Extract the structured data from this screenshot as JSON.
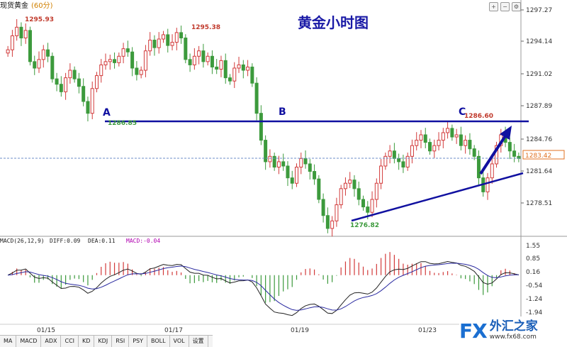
{
  "symbol_label": "现货黄金",
  "timeframe_label": "(60分)",
  "title": "黄金小时图",
  "price_axis": [
    "1297.27",
    "1294.14",
    "1291.02",
    "1287.89",
    "1284.76",
    "1281.64",
    "1278.51"
  ],
  "current_price": "1283.42",
  "annotations": {
    "high1": "1295.93",
    "high2": "1295.38",
    "level_a": "1286.85",
    "level_c": "1286.60",
    "low": "1276.82",
    "point_a": "A",
    "point_b": "B",
    "point_c": "C"
  },
  "macd_legend": {
    "params": "MACD(26,12,9)",
    "diff": "DIFF:0.09",
    "dea": "DEA:0.11",
    "macd": "MACD:-0.04"
  },
  "macd_axis": [
    "1.55",
    "0.85",
    "0.16",
    "-0.54",
    "-1.24",
    "-1.94"
  ],
  "dates": [
    "01/15",
    "01/17",
    "01/19",
    "01/23"
  ],
  "tabs": [
    "MA",
    "MACD",
    "ADX",
    "CCI",
    "KD",
    "KDJ",
    "RSI",
    "PSY",
    "BOLL",
    "VOL",
    "设置"
  ],
  "logo": {
    "mark": "FX",
    "name": "外汇之家",
    "url": "www.fx68.com"
  },
  "colors": {
    "bull": "#d23a3a",
    "bear": "#3c9a3c",
    "line": "#1010a0",
    "label_red": "#c0392b",
    "label_green": "#3c9a3c",
    "macd_label": "#b000b0"
  },
  "chart_data": {
    "type": "candlestick",
    "title": "黄金小时图",
    "series_close": [
      1293.5,
      1294.8,
      1295.6,
      1294.6,
      1295.3,
      1292.4,
      1291.8,
      1292.6,
      1293.5,
      1292.9,
      1290.8,
      1290.3,
      1289.6,
      1290.9,
      1291.6,
      1290.8,
      1290.1,
      1288.7,
      1287.6,
      1289.9,
      1291.1,
      1292.1,
      1292.4,
      1292.6,
      1292.3,
      1292.9,
      1293.6,
      1293.3,
      1291.8,
      1291.2,
      1291.6,
      1293.4,
      1294.4,
      1293.7,
      1294.5,
      1294.9,
      1293.9,
      1294.2,
      1295.1,
      1294.6,
      1292.6,
      1292.1,
      1292.9,
      1293.4,
      1292.4,
      1292.9,
      1291.9,
      1291.7,
      1292.5,
      1290.9,
      1290.6,
      1291.8,
      1292.1,
      1291.6,
      1291.9,
      1290.4,
      1287.6,
      1285.1,
      1283.1,
      1283.6,
      1282.6,
      1283.1,
      1282.7,
      1281.6,
      1281.1,
      1282.6,
      1283.4,
      1282.9,
      1282.2,
      1281.5,
      1279.6,
      1278.1,
      1276.9,
      1277.6,
      1279.1,
      1280.6,
      1281.1,
      1281.4,
      1280.6,
      1279.6,
      1278.9,
      1278.4,
      1279.6,
      1281.1,
      1282.7,
      1283.6,
      1284.1,
      1283.4,
      1283.1,
      1282.6,
      1283.6,
      1284.6,
      1285.1,
      1285.6,
      1284.9,
      1284.1,
      1284.6,
      1285.1,
      1285.8,
      1286.2,
      1285.4,
      1285.6,
      1284.6,
      1285.1,
      1284.3,
      1283.6,
      1281.6,
      1280.3,
      1281.6,
      1282.9,
      1284.6,
      1285.6,
      1284.9,
      1284.1,
      1283.6,
      1283.4
    ],
    "price_range": [
      1276.5,
      1297.6
    ],
    "lines": [
      {
        "name": "A-C resistance",
        "y": 1286.85
      },
      {
        "name": "support trendline",
        "from": [
          1277.6,
          "start"
        ],
        "to": [
          1280.6,
          "end"
        ]
      }
    ],
    "labels": {
      "high_1": 1295.93,
      "high_2": 1295.38,
      "a": 1286.85,
      "c": 1286.6,
      "low": 1276.82,
      "current": 1283.42
    },
    "macd": {
      "diff": 0.09,
      "dea": 0.11,
      "macd": -0.04,
      "range": [
        -1.94,
        1.55
      ]
    },
    "x_tick_labels": [
      "01/15",
      "01/17",
      "01/19",
      "01/23"
    ]
  }
}
